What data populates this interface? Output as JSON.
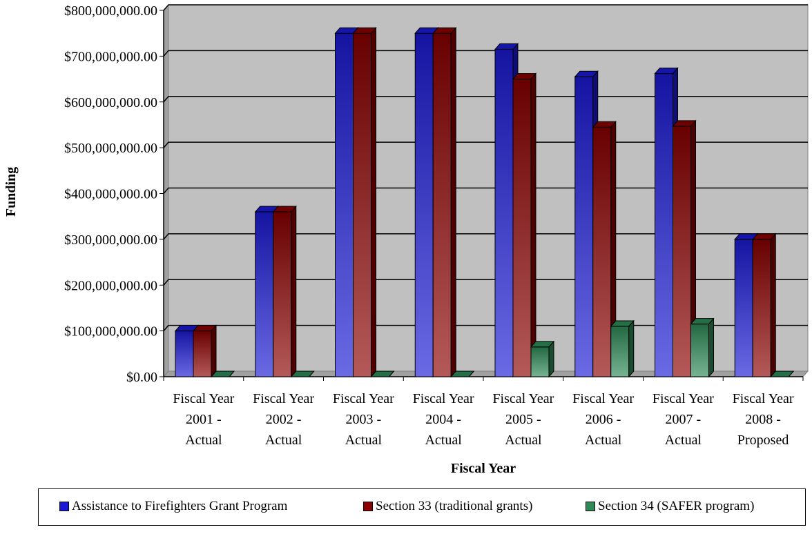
{
  "chart_data": {
    "type": "bar",
    "title": "",
    "xlabel": "Fiscal Year",
    "ylabel": "Funding",
    "ylim": [
      0,
      800000000
    ],
    "yticks": [
      "$0.00",
      "$100,000,000.00",
      "$200,000,000.00",
      "$300,000,000.00",
      "$400,000,000.00",
      "$500,000,000.00",
      "$600,000,000.00",
      "$700,000,000.00",
      "$800,000,000.00"
    ],
    "categories": [
      [
        "Fiscal Year",
        "2001 -",
        "Actual"
      ],
      [
        "Fiscal Year",
        "2002 -",
        "Actual"
      ],
      [
        "Fiscal Year",
        "2003 -",
        "Actual"
      ],
      [
        "Fiscal Year",
        "2004 -",
        "Actual"
      ],
      [
        "Fiscal Year",
        "2005 -",
        "Actual"
      ],
      [
        "Fiscal Year",
        "2006 -",
        "Actual"
      ],
      [
        "Fiscal Year",
        "2007 -",
        "Actual"
      ],
      [
        "Fiscal Year",
        "2008 -",
        "Proposed"
      ]
    ],
    "series": [
      {
        "name": "Assistance to Firefighters Grant Program",
        "color": "#1a1ad6",
        "values": [
          100000000,
          360000000,
          750000000,
          750000000,
          715000000,
          655000000,
          662000000,
          300000000
        ]
      },
      {
        "name": "Section 33 (traditional grants)",
        "color": "#8b0000",
        "values": [
          100000000,
          360000000,
          750000000,
          750000000,
          650000000,
          545000000,
          547000000,
          300000000
        ]
      },
      {
        "name": "Section 34 (SAFER program)",
        "color": "#2e8b57",
        "values": [
          0,
          0,
          0,
          0,
          65000000,
          110000000,
          115000000,
          0
        ]
      }
    ],
    "grid": true,
    "legend_position": "bottom",
    "plot_background": "#c0c0c0",
    "style": "3d-columns"
  }
}
